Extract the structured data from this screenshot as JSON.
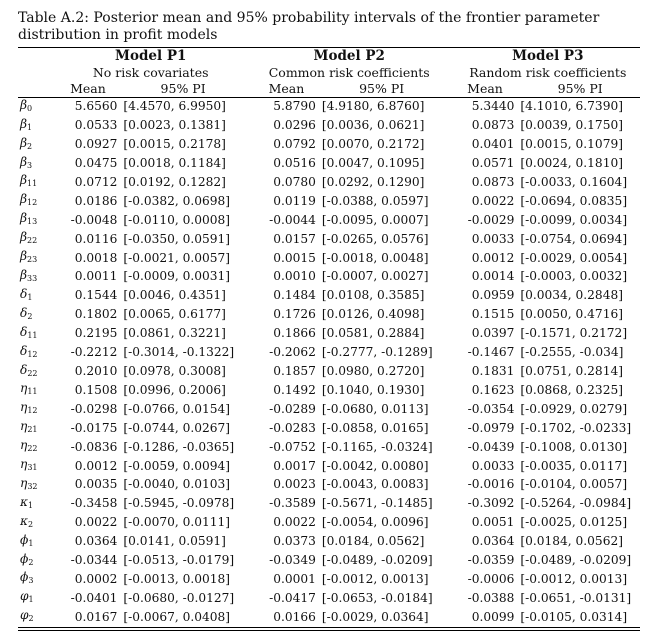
{
  "caption": "Table A.2: Posterior mean and 95% probability intervals of the frontier parameter distribution in profit models",
  "models": [
    {
      "name": "Model P1",
      "subtitle": "No risk covariates"
    },
    {
      "name": "Model P2",
      "subtitle": "Common risk coefficients"
    },
    {
      "name": "Model P3",
      "subtitle": "Random risk coefficients"
    }
  ],
  "column_labels": {
    "mean": "Mean",
    "pi": "95% PI"
  },
  "rows": [
    {
      "sym": "β",
      "sub": "0",
      "p1m": "5.6560",
      "p1pi": "[4.4570, 6.9950]",
      "p2m": "5.8790",
      "p2pi": "[4.9180, 6.8760]",
      "p3m": "5.3440",
      "p3pi": "[4.1010, 6.7390]"
    },
    {
      "sym": "β",
      "sub": "1",
      "p1m": "0.0533",
      "p1pi": "[0.0023, 0.1381]",
      "p2m": "0.0296",
      "p2pi": "[0.0036, 0.0621]",
      "p3m": "0.0873",
      "p3pi": "[0.0039, 0.1750]"
    },
    {
      "sym": "β",
      "sub": "2",
      "p1m": "0.0927",
      "p1pi": "[0.0015, 0.2178]",
      "p2m": "0.0792",
      "p2pi": "[0.0070, 0.2172]",
      "p3m": "0.0401",
      "p3pi": "[0.0015, 0.1079]"
    },
    {
      "sym": "β",
      "sub": "3",
      "p1m": "0.0475",
      "p1pi": "[0.0018, 0.1184]",
      "p2m": "0.0516",
      "p2pi": "[0.0047, 0.1095]",
      "p3m": "0.0571",
      "p3pi": "[0.0024, 0.1810]"
    },
    {
      "sym": "β",
      "sub": "11",
      "p1m": "0.0712",
      "p1pi": "[0.0192, 0.1282]",
      "p2m": "0.0780",
      "p2pi": "[0.0292, 0.1290]",
      "p3m": "0.0873",
      "p3pi": "[-0.0033, 0.1604]"
    },
    {
      "sym": "β",
      "sub": "12",
      "p1m": "0.0186",
      "p1pi": "[-0.0382, 0.0698]",
      "p2m": "0.0119",
      "p2pi": "[-0.0388, 0.0597]",
      "p3m": "0.0022",
      "p3pi": "[-0.0694, 0.0835]"
    },
    {
      "sym": "β",
      "sub": "13",
      "p1m": "-0.0048",
      "p1pi": "[-0.0110, 0.0008]",
      "p2m": "-0.0044",
      "p2pi": "[-0.0095, 0.0007]",
      "p3m": "-0.0029",
      "p3pi": "[-0.0099, 0.0034]"
    },
    {
      "sym": "β",
      "sub": "22",
      "p1m": "0.0116",
      "p1pi": "[-0.0350, 0.0591]",
      "p2m": "0.0157",
      "p2pi": "[-0.0265, 0.0576]",
      "p3m": "0.0033",
      "p3pi": "[-0.0754, 0.0694]"
    },
    {
      "sym": "β",
      "sub": "23",
      "p1m": "0.0018",
      "p1pi": "[-0.0021, 0.0057]",
      "p2m": "0.0015",
      "p2pi": "[-0.0018, 0.0048]",
      "p3m": "0.0012",
      "p3pi": "[-0.0029, 0.0054]"
    },
    {
      "sym": "β",
      "sub": "33",
      "p1m": "0.0011",
      "p1pi": "[-0.0009, 0.0031]",
      "p2m": "0.0010",
      "p2pi": "[-0.0007, 0.0027]",
      "p3m": "0.0014",
      "p3pi": "[-0.0003, 0.0032]"
    },
    {
      "sym": "δ",
      "sub": "1",
      "p1m": "0.1544",
      "p1pi": "[0.0046, 0.4351]",
      "p2m": "0.1484",
      "p2pi": "[0.0108, 0.3585]",
      "p3m": "0.0959",
      "p3pi": "[0.0034, 0.2848]"
    },
    {
      "sym": "δ",
      "sub": "2",
      "p1m": "0.1802",
      "p1pi": "[0.0065, 0.6177]",
      "p2m": "0.1726",
      "p2pi": "[0.0126, 0.4098]",
      "p3m": "0.1515",
      "p3pi": "[0.0050, 0.4716]"
    },
    {
      "sym": "δ",
      "sub": "11",
      "p1m": "0.2195",
      "p1pi": "[0.0861, 0.3221]",
      "p2m": "0.1866",
      "p2pi": "[0.0581, 0.2884]",
      "p3m": "0.0397",
      "p3pi": "[-0.1571, 0.2172]"
    },
    {
      "sym": "δ",
      "sub": "12",
      "p1m": "-0.2212",
      "p1pi": "[-0.3014, -0.1322]",
      "p2m": "-0.2062",
      "p2pi": "[-0.2777, -0.1289]",
      "p3m": "-0.1467",
      "p3pi": "[-0.2555, -0.034]"
    },
    {
      "sym": "δ",
      "sub": "22",
      "p1m": "0.2010",
      "p1pi": "[0.0978, 0.3008]",
      "p2m": "0.1857",
      "p2pi": "[0.0980, 0.2720]",
      "p3m": "0.1831",
      "p3pi": "[0.0751, 0.2814]"
    },
    {
      "sym": "η",
      "sub": "11",
      "p1m": "0.1508",
      "p1pi": "[0.0996, 0.2006]",
      "p2m": "0.1492",
      "p2pi": "[0.1040, 0.1930]",
      "p3m": "0.1623",
      "p3pi": "[0.0868, 0.2325]"
    },
    {
      "sym": "η",
      "sub": "12",
      "p1m": "-0.0298",
      "p1pi": "[-0.0766, 0.0154]",
      "p2m": "-0.0289",
      "p2pi": "[-0.0680, 0.0113]",
      "p3m": "-0.0354",
      "p3pi": "[-0.0929, 0.0279]"
    },
    {
      "sym": "η",
      "sub": "21",
      "p1m": "-0.0175",
      "p1pi": "[-0.0744, 0.0267]",
      "p2m": "-0.0283",
      "p2pi": "[-0.0858, 0.0165]",
      "p3m": "-0.0979",
      "p3pi": "[-0.1702, -0.0233]"
    },
    {
      "sym": "η",
      "sub": "22",
      "p1m": "-0.0836",
      "p1pi": "[-0.1286, -0.0365]",
      "p2m": "-0.0752",
      "p2pi": "[-0.1165, -0.0324]",
      "p3m": "-0.0439",
      "p3pi": "[-0.1008, 0.0130]"
    },
    {
      "sym": "η",
      "sub": "31",
      "p1m": "0.0012",
      "p1pi": "[-0.0059, 0.0094]",
      "p2m": "0.0017",
      "p2pi": "[-0.0042, 0.0080]",
      "p3m": "0.0033",
      "p3pi": "[-0.0035, 0.0117]"
    },
    {
      "sym": "η",
      "sub": "32",
      "p1m": "0.0035",
      "p1pi": "[-0.0040, 0.0103]",
      "p2m": "0.0023",
      "p2pi": "[-0.0043, 0.0083]",
      "p3m": "-0.0016",
      "p3pi": "[-0.0104, 0.0057]"
    },
    {
      "sym": "κ",
      "sub": "1",
      "p1m": "-0.3458",
      "p1pi": "[-0.5945, -0.0978]",
      "p2m": "-0.3589",
      "p2pi": "[-0.5671, -0.1485]",
      "p3m": "-0.3092",
      "p3pi": "[-0.5264, -0.0984]"
    },
    {
      "sym": "κ",
      "sub": "2",
      "p1m": "0.0022",
      "p1pi": "[-0.0070, 0.0111]",
      "p2m": "0.0022",
      "p2pi": "[-0.0054, 0.0096]",
      "p3m": "0.0051",
      "p3pi": "[-0.0025, 0.0125]"
    },
    {
      "sym": "ϕ",
      "sub": "1",
      "p1m": "0.0364",
      "p1pi": "[0.0141, 0.0591]",
      "p2m": "0.0373",
      "p2pi": "[0.0184, 0.0562]",
      "p3m": "0.0364",
      "p3pi": "[0.0184, 0.0562]"
    },
    {
      "sym": "ϕ",
      "sub": "2",
      "p1m": "-0.0344",
      "p1pi": "[-0.0513, -0.0179]",
      "p2m": "-0.0349",
      "p2pi": "[-0.0489, -0.0209]",
      "p3m": "-0.0359",
      "p3pi": "[-0.0489, -0.0209]"
    },
    {
      "sym": "ϕ",
      "sub": "3",
      "p1m": "0.0002",
      "p1pi": "[-0.0013, 0.0018]",
      "p2m": "0.0001",
      "p2pi": "[-0.0012, 0.0013]",
      "p3m": "-0.0006",
      "p3pi": "[-0.0012, 0.0013]"
    },
    {
      "sym": "φ",
      "sub": "1",
      "p1m": "-0.0401",
      "p1pi": "[-0.0680, -0.0127]",
      "p2m": "-0.0417",
      "p2pi": "[-0.0653, -0.0184]",
      "p3m": "-0.0388",
      "p3pi": "[-0.0651, -0.0131]"
    },
    {
      "sym": "φ",
      "sub": "2",
      "p1m": "0.0167",
      "p1pi": "[-0.0067, 0.0408]",
      "p2m": "0.0166",
      "p2pi": "[-0.0029, 0.0364]",
      "p3m": "0.0099",
      "p3pi": "[-0.0105, 0.0314]"
    }
  ]
}
